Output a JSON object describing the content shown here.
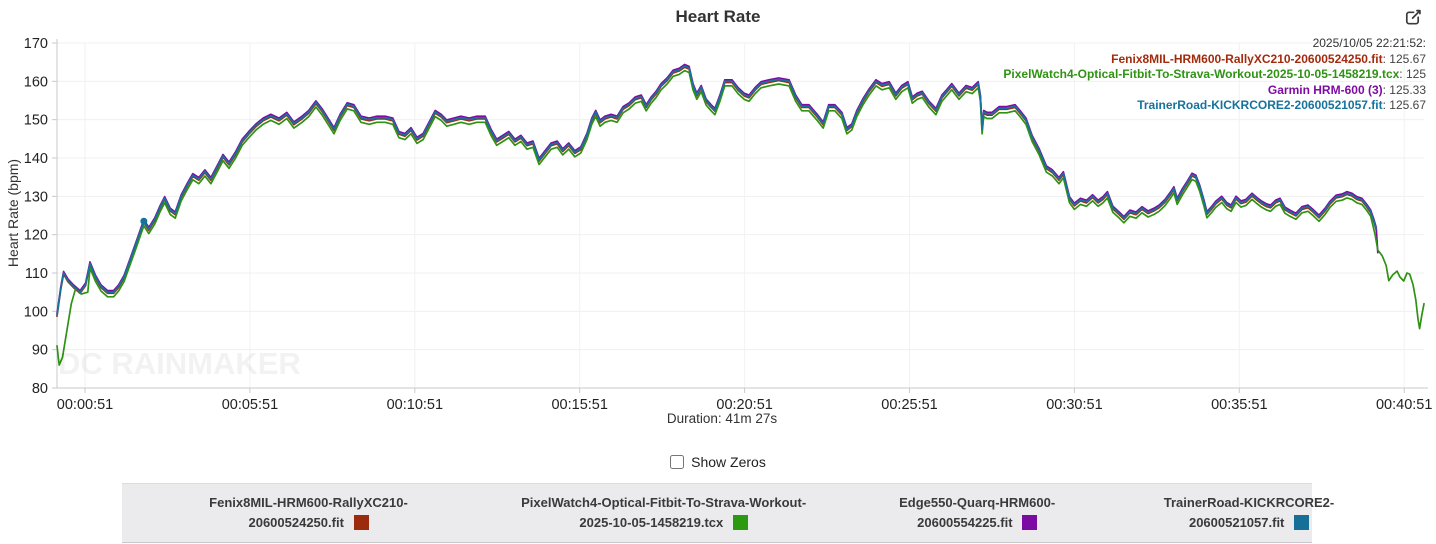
{
  "header": {
    "title": "Heart Rate",
    "edit_icon": "edit-box-icon"
  },
  "tooltip": {
    "timestamp": "2025/10/05 22:21:52:",
    "items": [
      {
        "label": "Fenix8MIL-HRM600-RallyXC210-20600524250.fit",
        "value": "125.67",
        "color": "#a32b0d"
      },
      {
        "label": "PixelWatch4-Optical-Fitbit-To-Strava-Workout-2025-10-05-1458219.tcx",
        "value": "125",
        "color": "#2e9313"
      },
      {
        "label": "Garmin HRM-600 (3)",
        "value": "125.33",
        "color": "#7e0ca4"
      },
      {
        "label": "TrainerRoad-KICKRCORE2-20600521057.fit",
        "value": "125.67",
        "color": "#16739c"
      }
    ]
  },
  "controls": {
    "show_zeros_label": "Show Zeros",
    "show_zeros_checked": false
  },
  "watermark": "DC RAINMAKER",
  "legend": {
    "items": [
      {
        "label_lines": [
          "Fenix8MIL-HRM600-RallyXC210-",
          "20600524250.fit"
        ],
        "name": "Fenix8MIL-HRM600-RallyXC210-20600524250.fit",
        "color": "#9c2a0c"
      },
      {
        "label_lines": [
          "PixelWatch4-Optical-Fitbit-To-Strava-Workout-",
          "2025-10-05-1458219.tcx"
        ],
        "name": "PixelWatch4-Optical-Fitbit-To-Strava-Workout-2025-10-05-1458219.tcx",
        "color": "#2c9a10"
      },
      {
        "label_lines": [
          "Edge550-Quarq-HRM600-",
          "20600554225.fit"
        ],
        "name": "Edge550-Quarq-HRM600-20600554225.fit",
        "color": "#7c0ba3"
      },
      {
        "label_lines": [
          "TrainerRoad-KICKRCORE2-",
          "20600521057.fit"
        ],
        "name": "TrainerRoad-KICKRCORE2-20600521057.fit",
        "color": "#156f96"
      }
    ]
  },
  "chart_data": {
    "type": "line",
    "title": "Heart Rate",
    "xlabel": "Duration: 41m 27s",
    "ylabel": "Heart Rate (bpm)",
    "ylim": [
      80,
      170
    ],
    "y_ticks": [
      80,
      90,
      100,
      110,
      120,
      130,
      140,
      150,
      160,
      170
    ],
    "xlim_seconds": [
      0,
      2487
    ],
    "x_ticks": [
      {
        "t": 51,
        "label": "00:00:51"
      },
      {
        "t": 351,
        "label": "00:05:51"
      },
      {
        "t": 651,
        "label": "00:10:51"
      },
      {
        "t": 951,
        "label": "00:15:51"
      },
      {
        "t": 1251,
        "label": "00:20:51"
      },
      {
        "t": 1551,
        "label": "00:25:51"
      },
      {
        "t": 1851,
        "label": "00:30:51"
      },
      {
        "t": 2151,
        "label": "00:35:51"
      },
      {
        "t": 2451,
        "label": "00:40:51"
      }
    ],
    "grid": true,
    "legend_position": "bottom",
    "ensemble_points_t_bpm": [
      [
        0,
        99
      ],
      [
        7,
        106
      ],
      [
        12,
        110
      ],
      [
        20,
        108
      ],
      [
        30,
        106.5
      ],
      [
        42,
        105
      ],
      [
        52,
        107
      ],
      [
        60,
        112.5
      ],
      [
        70,
        109
      ],
      [
        80,
        106.5
      ],
      [
        92,
        105
      ],
      [
        103,
        105
      ],
      [
        112,
        106.5
      ],
      [
        122,
        109
      ],
      [
        132,
        113
      ],
      [
        142,
        117
      ],
      [
        152,
        121
      ],
      [
        158,
        123.5
      ],
      [
        167,
        121.5
      ],
      [
        178,
        124
      ],
      [
        187,
        127
      ],
      [
        196,
        129.5
      ],
      [
        206,
        126.5
      ],
      [
        215,
        125.5
      ],
      [
        226,
        130
      ],
      [
        237,
        133
      ],
      [
        247,
        135.5
      ],
      [
        258,
        134.5
      ],
      [
        269,
        136.5
      ],
      [
        280,
        134.5
      ],
      [
        291,
        137.5
      ],
      [
        302,
        140.5
      ],
      [
        313,
        138.5
      ],
      [
        324,
        141
      ],
      [
        337,
        144.5
      ],
      [
        349,
        146.5
      ],
      [
        362,
        148.5
      ],
      [
        375,
        150
      ],
      [
        389,
        151
      ],
      [
        404,
        150
      ],
      [
        418,
        151.5
      ],
      [
        431,
        149
      ],
      [
        446,
        150.5
      ],
      [
        458,
        152
      ],
      [
        471,
        154.5
      ],
      [
        482,
        152.5
      ],
      [
        493,
        150
      ],
      [
        504,
        147.5
      ],
      [
        515,
        151
      ],
      [
        528,
        154
      ],
      [
        540,
        153.5
      ],
      [
        553,
        150.5
      ],
      [
        568,
        150
      ],
      [
        582,
        150.5
      ],
      [
        597,
        150.5
      ],
      [
        611,
        150
      ],
      [
        622,
        146.5
      ],
      [
        633,
        146
      ],
      [
        644,
        147.5
      ],
      [
        655,
        145
      ],
      [
        666,
        146
      ],
      [
        677,
        149
      ],
      [
        688,
        152
      ],
      [
        699,
        151
      ],
      [
        709,
        149.5
      ],
      [
        722,
        150
      ],
      [
        735,
        150.5
      ],
      [
        750,
        150
      ],
      [
        764,
        150.5
      ],
      [
        779,
        150.5
      ],
      [
        790,
        147
      ],
      [
        800,
        144.5
      ],
      [
        811,
        145.5
      ],
      [
        822,
        146.5
      ],
      [
        833,
        144.5
      ],
      [
        844,
        145.5
      ],
      [
        855,
        143.5
      ],
      [
        866,
        144
      ],
      [
        877,
        139.5
      ],
      [
        888,
        141.5
      ],
      [
        899,
        143.5
      ],
      [
        910,
        144
      ],
      [
        920,
        142
      ],
      [
        931,
        143.5
      ],
      [
        942,
        141.5
      ],
      [
        953,
        142.5
      ],
      [
        964,
        146
      ],
      [
        973,
        150
      ],
      [
        980,
        152
      ],
      [
        988,
        149.5
      ],
      [
        997,
        150.5
      ],
      [
        1008,
        151
      ],
      [
        1019,
        150.5
      ],
      [
        1030,
        153
      ],
      [
        1041,
        154
      ],
      [
        1052,
        155.5
      ],
      [
        1063,
        156
      ],
      [
        1072,
        153.5
      ],
      [
        1081,
        155.5
      ],
      [
        1090,
        157
      ],
      [
        1099,
        159
      ],
      [
        1110,
        160.5
      ],
      [
        1121,
        162.5
      ],
      [
        1132,
        163
      ],
      [
        1142,
        164
      ],
      [
        1150,
        163.5
      ],
      [
        1157,
        159
      ],
      [
        1164,
        156.5
      ],
      [
        1172,
        158.5
      ],
      [
        1181,
        155
      ],
      [
        1190,
        153.5
      ],
      [
        1197,
        152.5
      ],
      [
        1206,
        156
      ],
      [
        1215,
        160
      ],
      [
        1228,
        160
      ],
      [
        1239,
        158
      ],
      [
        1250,
        156.5
      ],
      [
        1259,
        156
      ],
      [
        1270,
        158
      ],
      [
        1281,
        159.5
      ],
      [
        1295,
        160
      ],
      [
        1313,
        160.5
      ],
      [
        1332,
        160
      ],
      [
        1344,
        156
      ],
      [
        1355,
        153.5
      ],
      [
        1368,
        153.5
      ],
      [
        1383,
        151
      ],
      [
        1394,
        149
      ],
      [
        1404,
        153.5
      ],
      [
        1415,
        153.5
      ],
      [
        1428,
        151.5
      ],
      [
        1437,
        147.5
      ],
      [
        1446,
        148.5
      ],
      [
        1455,
        152
      ],
      [
        1466,
        155
      ],
      [
        1477,
        157.5
      ],
      [
        1490,
        160
      ],
      [
        1501,
        159
      ],
      [
        1514,
        159.5
      ],
      [
        1526,
        156.5
      ],
      [
        1537,
        158.5
      ],
      [
        1548,
        159.5
      ],
      [
        1556,
        155.5
      ],
      [
        1565,
        156.5
      ],
      [
        1574,
        157
      ],
      [
        1586,
        154.5
      ],
      [
        1599,
        152.5
      ],
      [
        1610,
        156
      ],
      [
        1619,
        157.5
      ],
      [
        1628,
        159
      ],
      [
        1641,
        156.5
      ],
      [
        1654,
        158.5
      ],
      [
        1665,
        158
      ],
      [
        1676,
        159.5
      ],
      [
        1680,
        156
      ],
      [
        1683,
        147.5
      ],
      [
        1686,
        152
      ],
      [
        1692,
        151.5
      ],
      [
        1701,
        151.5
      ],
      [
        1714,
        153
      ],
      [
        1728,
        153
      ],
      [
        1743,
        153.5
      ],
      [
        1752,
        152
      ],
      [
        1763,
        150
      ],
      [
        1774,
        145.5
      ],
      [
        1787,
        142
      ],
      [
        1800,
        137.5
      ],
      [
        1811,
        136.5
      ],
      [
        1823,
        134.5
      ],
      [
        1831,
        136
      ],
      [
        1842,
        129.5
      ],
      [
        1851,
        127.8
      ],
      [
        1862,
        129.1
      ],
      [
        1873,
        128.6
      ],
      [
        1884,
        130
      ],
      [
        1894,
        128.6
      ],
      [
        1903,
        129.5
      ],
      [
        1911,
        130.8
      ],
      [
        1921,
        127
      ],
      [
        1932,
        125.6
      ],
      [
        1941,
        124.3
      ],
      [
        1952,
        126
      ],
      [
        1963,
        125.5
      ],
      [
        1974,
        126.9
      ],
      [
        1985,
        125.8
      ],
      [
        1996,
        126.5
      ],
      [
        2005,
        127.3
      ],
      [
        2016,
        128.8
      ],
      [
        2027,
        131
      ],
      [
        2032,
        132.1
      ],
      [
        2038,
        129.1
      ],
      [
        2047,
        131.5
      ],
      [
        2056,
        133.5
      ],
      [
        2065,
        135.6
      ],
      [
        2072,
        135.1
      ],
      [
        2079,
        132.5
      ],
      [
        2087,
        128.5
      ],
      [
        2092,
        125.6
      ],
      [
        2101,
        127
      ],
      [
        2108,
        128.3
      ],
      [
        2119,
        129.6
      ],
      [
        2128,
        128
      ],
      [
        2136,
        127.3
      ],
      [
        2145,
        129.6
      ],
      [
        2154,
        128.4
      ],
      [
        2163,
        128.8
      ],
      [
        2174,
        130.4
      ],
      [
        2183,
        129.3
      ],
      [
        2192,
        128.3
      ],
      [
        2201,
        127.6
      ],
      [
        2208,
        127.3
      ],
      [
        2217,
        128.6
      ],
      [
        2225,
        129.1
      ],
      [
        2234,
        126.8
      ],
      [
        2243,
        126
      ],
      [
        2254,
        125.2
      ],
      [
        2265,
        126.9
      ],
      [
        2276,
        127.3
      ],
      [
        2285,
        126.2
      ],
      [
        2296,
        124.7
      ],
      [
        2307,
        126.5
      ],
      [
        2316,
        128.3
      ],
      [
        2327,
        129.9
      ],
      [
        2338,
        130.2
      ],
      [
        2347,
        130.8
      ],
      [
        2356,
        130.4
      ],
      [
        2365,
        129.5
      ],
      [
        2374,
        129.1
      ],
      [
        2383,
        127.5
      ],
      [
        2390,
        126
      ],
      [
        2396,
        123.5
      ],
      [
        2400,
        121.5
      ]
    ],
    "series": [
      {
        "name": "Fenix8MIL-HRM600-RallyXC210-20600524250.fit",
        "color": "#a32b0d",
        "offset": -0.3,
        "from": 0,
        "to": 2400
      },
      {
        "name": "Edge550-Quarq-HRM600-20600554225.fit",
        "color": "#7e0ca4",
        "offset": 0.4,
        "from": 0,
        "to": 2400,
        "tail": [
          [
            2403,
            115.3
          ]
        ]
      },
      {
        "name": "PixelWatch4-Optical-Fitbit-To-Strava-Workout-2025-10-05-1458219.tcx",
        "color": "#2e9313",
        "offset": -1.2,
        "from": 60,
        "to": 2392,
        "head": [
          [
            0,
            91
          ],
          [
            4,
            86
          ],
          [
            10,
            88
          ],
          [
            18,
            95
          ],
          [
            26,
            102
          ],
          [
            34,
            106
          ],
          [
            44,
            104.5
          ],
          [
            56,
            105
          ]
        ],
        "tail": [
          [
            2398,
            120
          ],
          [
            2403,
            116
          ],
          [
            2411,
            114.5
          ],
          [
            2418,
            112
          ],
          [
            2423,
            108
          ],
          [
            2430,
            109.5
          ],
          [
            2438,
            110.5
          ],
          [
            2443,
            109
          ],
          [
            2450,
            107.9
          ],
          [
            2456,
            110
          ],
          [
            2461,
            109.7
          ],
          [
            2467,
            107
          ],
          [
            2472,
            103
          ],
          [
            2476,
            98
          ],
          [
            2479,
            95.5
          ],
          [
            2483,
            99
          ],
          [
            2487,
            102
          ]
        ]
      },
      {
        "name": "TrainerRoad-KICKRCORE2-20600521057.fit",
        "color": "#16739c",
        "offset": 0,
        "from": 0,
        "to": 2400,
        "marker": {
          "t": 158,
          "bpm": 123.5
        }
      }
    ]
  }
}
